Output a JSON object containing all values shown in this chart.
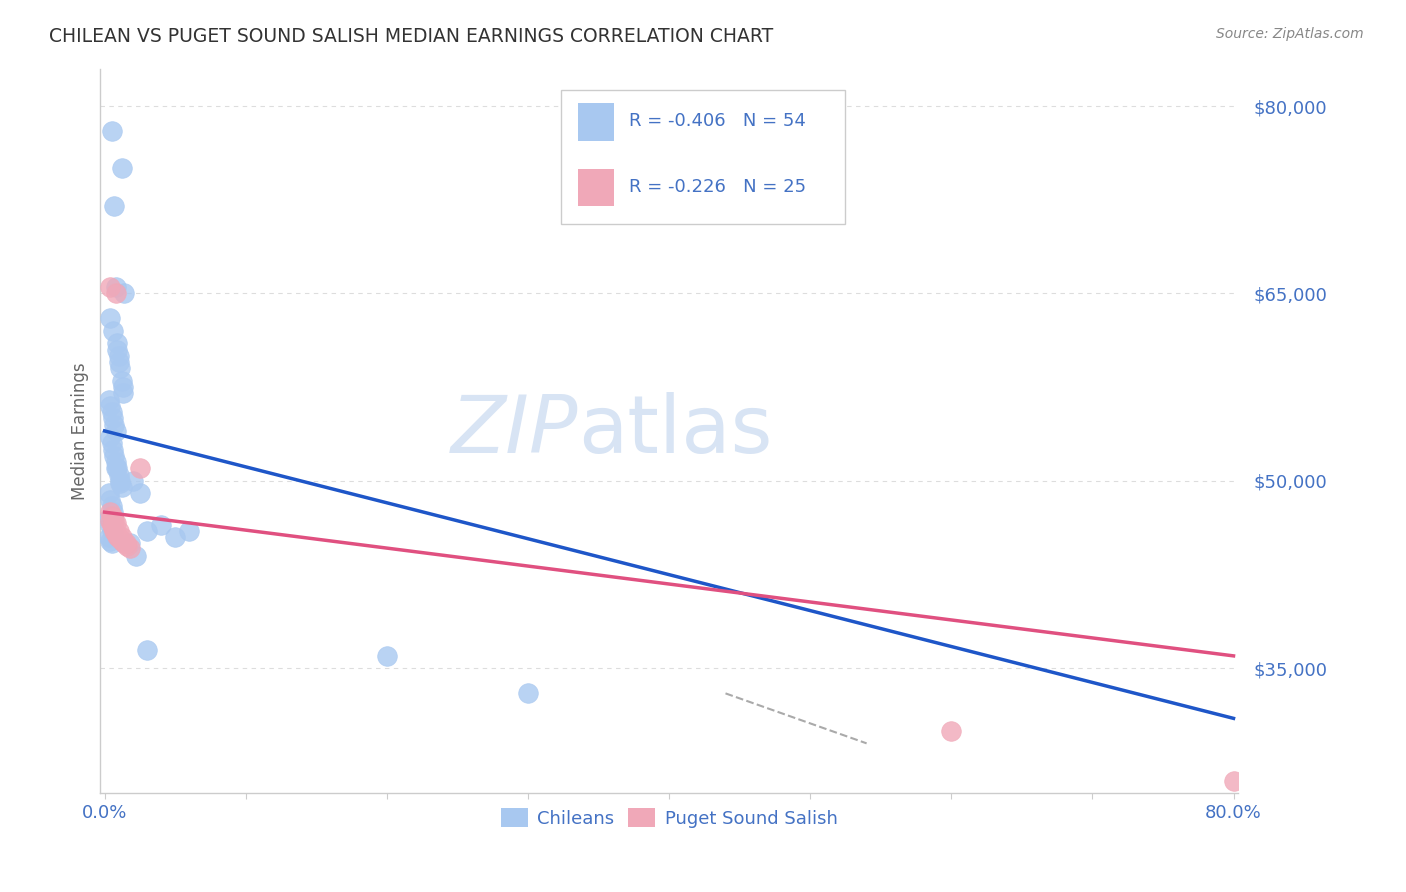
{
  "title": "CHILEAN VS PUGET SOUND SALISH MEDIAN EARNINGS CORRELATION CHART",
  "source": "Source: ZipAtlas.com",
  "ylabel": "Median Earnings",
  "ytick_labels": [
    "$35,000",
    "$50,000",
    "$65,000",
    "$80,000"
  ],
  "ytick_values": [
    35000,
    50000,
    65000,
    80000
  ],
  "ylim": [
    25000,
    83000
  ],
  "xlim": [
    -0.003,
    0.803
  ],
  "legend_entry1": "R = -0.406   N = 54",
  "legend_entry2": "R = -0.226   N = 25",
  "legend_label1": "Chileans",
  "legend_label2": "Puget Sound Salish",
  "blue_color": "#A8C8F0",
  "pink_color": "#F0A8B8",
  "blue_line_color": "#1E56C8",
  "pink_line_color": "#E05080",
  "dashed_line_color": "#AAAAAA",
  "axis_label_color": "#4472C4",
  "watermark_color": "#D8E4F4",
  "grid_color": "#DDDDDD",
  "chileans_x": [
    0.005,
    0.012,
    0.007,
    0.008,
    0.014,
    0.004,
    0.006,
    0.009,
    0.009,
    0.01,
    0.01,
    0.011,
    0.012,
    0.013,
    0.013,
    0.003,
    0.004,
    0.005,
    0.006,
    0.007,
    0.008,
    0.004,
    0.005,
    0.006,
    0.007,
    0.008,
    0.009,
    0.01,
    0.011,
    0.011,
    0.012,
    0.003,
    0.004,
    0.005,
    0.006,
    0.003,
    0.004,
    0.005,
    0.006,
    0.003,
    0.004,
    0.005,
    0.02,
    0.025,
    0.03,
    0.04,
    0.008,
    0.018,
    0.022,
    0.03,
    0.05,
    0.06,
    0.2,
    0.3
  ],
  "chileans_y": [
    78000,
    75000,
    72000,
    65500,
    65000,
    63000,
    62000,
    61000,
    60500,
    60000,
    59500,
    59000,
    58000,
    57500,
    57000,
    56500,
    56000,
    55500,
    55000,
    54500,
    54000,
    53500,
    53000,
    52500,
    52000,
    51500,
    51000,
    50500,
    50000,
    49800,
    49500,
    49000,
    48500,
    48000,
    47500,
    47000,
    46500,
    46000,
    45800,
    45500,
    45200,
    45000,
    50000,
    49000,
    46000,
    46500,
    51000,
    45000,
    44000,
    36500,
    45500,
    46000,
    36000,
    33000
  ],
  "salish_x": [
    0.004,
    0.008,
    0.004,
    0.006,
    0.004,
    0.005,
    0.006,
    0.007,
    0.008,
    0.009,
    0.01,
    0.012,
    0.014,
    0.016,
    0.018,
    0.005,
    0.006,
    0.007,
    0.008,
    0.01,
    0.012,
    0.015,
    0.025,
    0.6,
    0.8
  ],
  "salish_y": [
    65500,
    65000,
    47500,
    47000,
    46800,
    46500,
    46300,
    46000,
    45800,
    45600,
    45400,
    45200,
    45000,
    44800,
    44600,
    47200,
    47000,
    46800,
    46600,
    46000,
    45500,
    45000,
    51000,
    30000,
    26000
  ],
  "blue_trendline_x": [
    0.0,
    0.8
  ],
  "blue_trendline_y": [
    54000,
    31000
  ],
  "pink_trendline_x": [
    0.0,
    0.8
  ],
  "pink_trendline_y": [
    47500,
    36000
  ],
  "dashed_line_x": [
    0.44,
    0.54
  ],
  "dashed_line_y": [
    33000,
    29000
  ]
}
